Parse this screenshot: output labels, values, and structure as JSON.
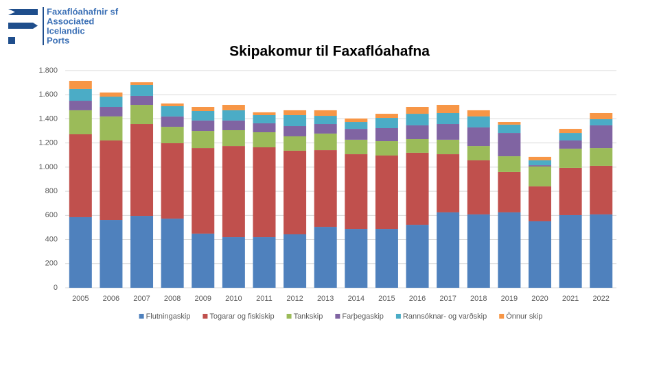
{
  "logo": {
    "lines": [
      "Faxaflóahafnir sf",
      "Associated",
      "Icelandic",
      "Ports"
    ]
  },
  "chart_data": {
    "type": "stacked_bar",
    "title": "Skipakomur til Faxaflóahafna",
    "categories": [
      "2005",
      "2006",
      "2007",
      "2008",
      "2009",
      "2010",
      "2011",
      "2012",
      "2013",
      "2014",
      "2015",
      "2016",
      "2017",
      "2018",
      "2019",
      "2020",
      "2021",
      "2022"
    ],
    "series": [
      {
        "name": "Flutningaskip",
        "color": "#4f81bd",
        "values": [
          585,
          562,
          596,
          573,
          449,
          420,
          420,
          443,
          505,
          488,
          488,
          522,
          625,
          608,
          625,
          551,
          602,
          608
        ]
      },
      {
        "name": "Togarar og fiskiskip",
        "color": "#c0504d",
        "values": [
          687,
          659,
          761,
          625,
          709,
          755,
          744,
          693,
          636,
          619,
          608,
          597,
          482,
          448,
          335,
          289,
          392,
          403
        ]
      },
      {
        "name": "Tankskip",
        "color": "#9bbb59",
        "values": [
          199,
          199,
          159,
          136,
          142,
          131,
          125,
          119,
          137,
          120,
          119,
          113,
          120,
          119,
          130,
          165,
          159,
          147
        ]
      },
      {
        "name": "Farþegaskip",
        "color": "#8064a2",
        "values": [
          79,
          79,
          74,
          85,
          86,
          80,
          74,
          85,
          79,
          90,
          108,
          114,
          130,
          154,
          193,
          11,
          68,
          188
        ]
      },
      {
        "name": "Rannsóknar- og varðskip",
        "color": "#4bacc6",
        "values": [
          97,
          85,
          91,
          86,
          79,
          85,
          68,
          91,
          68,
          57,
          85,
          96,
          91,
          91,
          69,
          40,
          62,
          51
        ]
      },
      {
        "name": "Önnur skip",
        "color": "#f79646",
        "values": [
          68,
          34,
          22,
          22,
          34,
          45,
          23,
          40,
          46,
          29,
          34,
          57,
          68,
          51,
          22,
          29,
          34,
          51
        ]
      }
    ],
    "ylim": [
      0,
      1800
    ],
    "yticks": [
      0,
      200,
      400,
      600,
      800,
      {
        "value": 1000,
        "label": "1.000"
      },
      {
        "value": 1200,
        "label": "1.200"
      },
      {
        "value": 1400,
        "label": "1.400"
      },
      {
        "value": 1600,
        "label": "1.600"
      },
      {
        "value": 1800,
        "label": "1.800"
      }
    ],
    "grid": true,
    "legend": "bottom"
  }
}
